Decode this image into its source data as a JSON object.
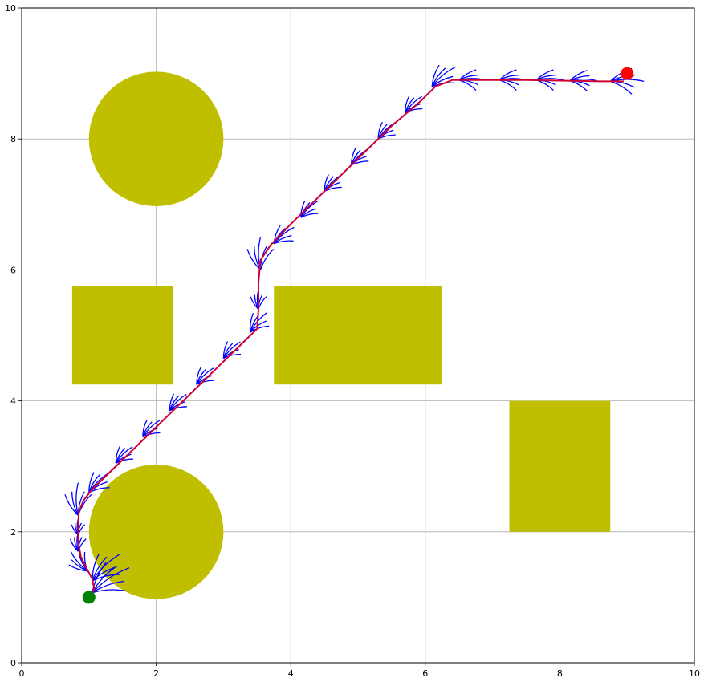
{
  "chart_data": {
    "type": "scatter",
    "title": "",
    "xlabel": "",
    "ylabel": "",
    "xlim": [
      0,
      10
    ],
    "ylim": [
      0,
      10
    ],
    "x_ticks": [
      "0",
      "2",
      "4",
      "6",
      "8",
      "10"
    ],
    "y_ticks": [
      "0",
      "2",
      "4",
      "6",
      "8",
      "10"
    ],
    "grid": true,
    "obstacles": {
      "color": "#bfbf00",
      "circles": [
        {
          "cx": 2,
          "cy": 8,
          "r": 1
        },
        {
          "cx": 2,
          "cy": 2,
          "r": 1
        }
      ],
      "rectangles": [
        {
          "x0": 0.75,
          "y0": 4.25,
          "x1": 2.25,
          "y1": 5.75
        },
        {
          "x0": 3.75,
          "y0": 4.25,
          "x1": 6.25,
          "y1": 5.75
        },
        {
          "x0": 7.25,
          "y0": 2.0,
          "x1": 8.75,
          "y1": 4.0
        }
      ]
    },
    "start": {
      "x": 1.0,
      "y": 1.0,
      "color": "#008000"
    },
    "goal": {
      "x": 9.0,
      "y": 9.0,
      "color": "#ff0000"
    },
    "path": {
      "color": "#cc0033",
      "points": [
        [
          1.0,
          1.0
        ],
        [
          1.08,
          1.12
        ],
        [
          1.05,
          1.28
        ],
        [
          0.96,
          1.45
        ],
        [
          0.88,
          1.62
        ],
        [
          0.84,
          1.85
        ],
        [
          0.84,
          2.1
        ],
        [
          0.85,
          2.3
        ],
        [
          0.92,
          2.48
        ],
        [
          1.05,
          2.65
        ],
        [
          1.3,
          2.9
        ],
        [
          1.6,
          3.2
        ],
        [
          1.9,
          3.5
        ],
        [
          2.25,
          3.85
        ],
        [
          2.6,
          4.2
        ],
        [
          2.9,
          4.5
        ],
        [
          3.25,
          4.85
        ],
        [
          3.5,
          5.1
        ],
        [
          3.52,
          5.4
        ],
        [
          3.52,
          5.8
        ],
        [
          3.55,
          6.15
        ],
        [
          3.7,
          6.38
        ],
        [
          4.0,
          6.7
        ],
        [
          4.3,
          7.0
        ],
        [
          4.7,
          7.4
        ],
        [
          5.1,
          7.8
        ],
        [
          5.5,
          8.2
        ],
        [
          5.9,
          8.55
        ],
        [
          6.15,
          8.8
        ],
        [
          6.4,
          8.9
        ],
        [
          6.9,
          8.9
        ],
        [
          7.5,
          8.9
        ],
        [
          8.1,
          8.89
        ],
        [
          8.6,
          8.88
        ],
        [
          8.95,
          8.88
        ]
      ]
    },
    "tree": {
      "color": "#0000ff",
      "nodes": [
        {
          "x": 1.05,
          "y": 1.07,
          "hx": 0.55,
          "hy": 0.38
        },
        {
          "x": 1.05,
          "y": 1.25,
          "hx": 0.4,
          "hy": 0.4
        },
        {
          "x": 0.98,
          "y": 1.4,
          "hx": -0.25,
          "hy": 0.3
        },
        {
          "x": 0.84,
          "y": 1.7,
          "hx": 0.0,
          "hy": 0.3
        },
        {
          "x": 0.84,
          "y": 1.95,
          "hx": 0.0,
          "hy": 0.25
        },
        {
          "x": 0.84,
          "y": 2.25,
          "hx": 0.0,
          "hy": 0.5
        },
        {
          "x": 1.0,
          "y": 2.6,
          "hx": 0.3,
          "hy": 0.3
        },
        {
          "x": 1.4,
          "y": 3.05,
          "hx": 0.25,
          "hy": 0.25
        },
        {
          "x": 1.8,
          "y": 3.45,
          "hx": 0.25,
          "hy": 0.25
        },
        {
          "x": 2.2,
          "y": 3.85,
          "hx": 0.25,
          "hy": 0.25
        },
        {
          "x": 2.6,
          "y": 4.25,
          "hx": 0.25,
          "hy": 0.25
        },
        {
          "x": 3.0,
          "y": 4.65,
          "hx": 0.25,
          "hy": 0.25
        },
        {
          "x": 3.4,
          "y": 5.05,
          "hx": 0.25,
          "hy": 0.3
        },
        {
          "x": 3.52,
          "y": 5.4,
          "hx": 0.0,
          "hy": 0.3
        },
        {
          "x": 3.55,
          "y": 6.0,
          "hx": 0.0,
          "hy": 0.5
        },
        {
          "x": 3.75,
          "y": 6.4,
          "hx": 0.3,
          "hy": 0.25
        },
        {
          "x": 4.15,
          "y": 6.8,
          "hx": 0.25,
          "hy": 0.25
        },
        {
          "x": 4.5,
          "y": 7.2,
          "hx": 0.25,
          "hy": 0.25
        },
        {
          "x": 4.9,
          "y": 7.6,
          "hx": 0.25,
          "hy": 0.25
        },
        {
          "x": 5.3,
          "y": 8.0,
          "hx": 0.25,
          "hy": 0.25
        },
        {
          "x": 5.7,
          "y": 8.4,
          "hx": 0.25,
          "hy": 0.25
        },
        {
          "x": 6.1,
          "y": 8.8,
          "hx": 0.35,
          "hy": 0.3
        },
        {
          "x": 6.5,
          "y": 8.9,
          "hx": 0.4,
          "hy": 0.0
        },
        {
          "x": 7.1,
          "y": 8.9,
          "hx": 0.4,
          "hy": 0.0
        },
        {
          "x": 7.65,
          "y": 8.9,
          "hx": 0.4,
          "hy": 0.0
        },
        {
          "x": 8.15,
          "y": 8.89,
          "hx": 0.4,
          "hy": 0.0
        },
        {
          "x": 8.75,
          "y": 8.88,
          "hx": 0.5,
          "hy": 0.0
        }
      ]
    }
  }
}
